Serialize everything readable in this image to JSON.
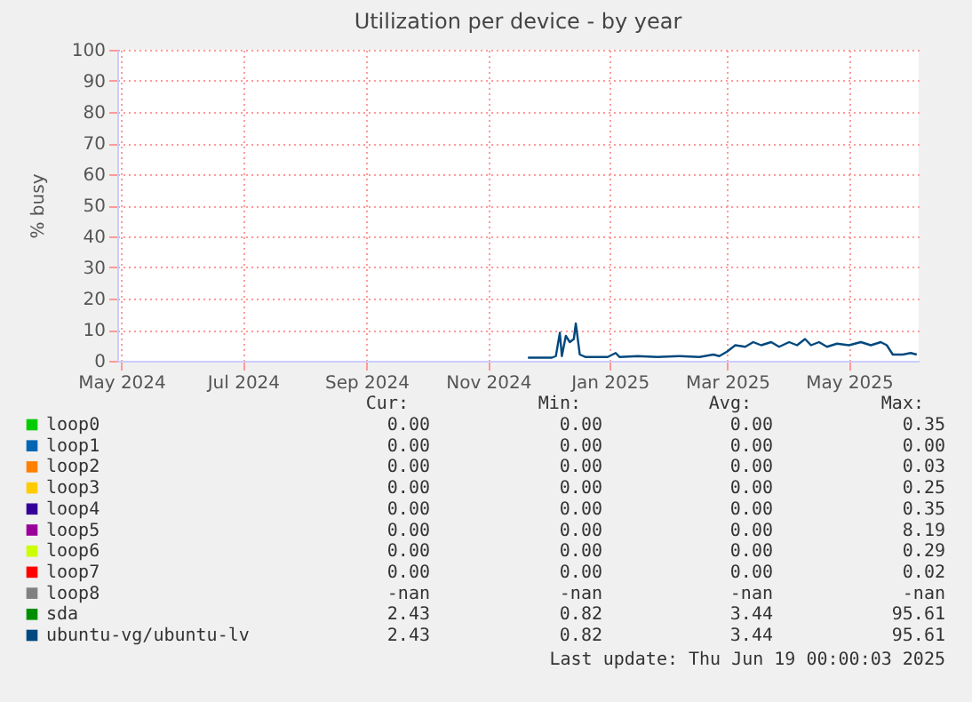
{
  "chart_data": {
    "type": "line",
    "title": "Utilization per device - by year",
    "ylabel": "% busy",
    "x": [
      "2024-11-21",
      "2024-12-03",
      "2024-12-05",
      "2024-12-07",
      "2024-12-08",
      "2024-12-10",
      "2024-12-12",
      "2024-12-14",
      "2024-12-15",
      "2024-12-17",
      "2024-12-20",
      "2024-12-31",
      "2025-01-04",
      "2025-01-06",
      "2025-01-15",
      "2025-01-25",
      "2025-02-05",
      "2025-02-15",
      "2025-02-22",
      "2025-02-25",
      "2025-03-01",
      "2025-03-05",
      "2025-03-10",
      "2025-03-14",
      "2025-03-18",
      "2025-03-23",
      "2025-03-27",
      "2025-04-01",
      "2025-04-05",
      "2025-04-09",
      "2025-04-12",
      "2025-04-16",
      "2025-04-20",
      "2025-04-25",
      "2025-05-01",
      "2025-05-07",
      "2025-05-12",
      "2025-05-17",
      "2025-05-20",
      "2025-05-23",
      "2025-05-28",
      "2025-06-01",
      "2025-06-04"
    ],
    "series": [
      {
        "name": "loop0",
        "color": "#00cc00",
        "values": [
          null,
          null,
          null,
          null,
          null,
          null,
          null,
          null,
          null,
          null,
          null,
          null,
          null,
          null,
          null,
          null,
          null,
          null,
          null,
          null,
          null,
          null,
          null,
          null,
          null,
          null,
          null,
          null,
          null,
          null,
          null,
          null,
          null,
          null,
          null,
          null,
          null,
          null,
          null,
          null,
          null,
          null,
          null
        ]
      },
      {
        "name": "loop1",
        "color": "#0066b3",
        "values": [
          null,
          null,
          null,
          null,
          null,
          null,
          null,
          null,
          null,
          null,
          null,
          null,
          null,
          null,
          null,
          null,
          null,
          null,
          null,
          null,
          null,
          null,
          null,
          null,
          null,
          null,
          null,
          null,
          null,
          null,
          null,
          null,
          null,
          null,
          null,
          null,
          null,
          null,
          null,
          null,
          null,
          null,
          null
        ]
      },
      {
        "name": "loop2",
        "color": "#ff8000",
        "values": [
          null,
          null,
          null,
          null,
          null,
          null,
          null,
          null,
          null,
          null,
          null,
          null,
          null,
          null,
          null,
          null,
          null,
          null,
          null,
          null,
          null,
          null,
          null,
          null,
          null,
          null,
          null,
          null,
          null,
          null,
          null,
          null,
          null,
          null,
          null,
          null,
          null,
          null,
          null,
          null,
          null,
          null,
          null
        ]
      },
      {
        "name": "loop3",
        "color": "#ffcc00",
        "values": [
          null,
          null,
          null,
          null,
          null,
          null,
          null,
          null,
          null,
          null,
          null,
          null,
          null,
          null,
          null,
          null,
          null,
          null,
          null,
          null,
          null,
          null,
          null,
          null,
          null,
          null,
          null,
          null,
          null,
          null,
          null,
          null,
          null,
          null,
          null,
          null,
          null,
          null,
          null,
          null,
          null,
          null,
          null
        ]
      },
      {
        "name": "loop4",
        "color": "#330099",
        "values": [
          null,
          null,
          null,
          null,
          null,
          null,
          null,
          null,
          null,
          null,
          null,
          null,
          null,
          null,
          null,
          null,
          null,
          null,
          null,
          null,
          null,
          null,
          null,
          null,
          null,
          null,
          null,
          null,
          null,
          null,
          null,
          null,
          null,
          null,
          null,
          null,
          null,
          null,
          null,
          null,
          null,
          null,
          null
        ]
      },
      {
        "name": "loop5",
        "color": "#990099",
        "values": [
          null,
          null,
          null,
          null,
          null,
          null,
          null,
          null,
          null,
          null,
          null,
          null,
          null,
          null,
          null,
          null,
          null,
          null,
          null,
          null,
          null,
          null,
          null,
          null,
          null,
          null,
          null,
          null,
          null,
          null,
          null,
          null,
          null,
          null,
          null,
          null,
          null,
          null,
          null,
          null,
          null,
          null,
          null
        ]
      },
      {
        "name": "loop6",
        "color": "#ccff00",
        "values": [
          null,
          null,
          null,
          null,
          null,
          null,
          null,
          null,
          null,
          null,
          null,
          null,
          null,
          null,
          null,
          null,
          null,
          null,
          null,
          null,
          null,
          null,
          null,
          null,
          null,
          null,
          null,
          null,
          null,
          null,
          null,
          null,
          null,
          null,
          null,
          null,
          null,
          null,
          null,
          null,
          null,
          null,
          null
        ]
      },
      {
        "name": "loop7",
        "color": "#ff0000",
        "values": [
          null,
          null,
          null,
          null,
          null,
          null,
          null,
          null,
          null,
          null,
          null,
          null,
          null,
          null,
          null,
          null,
          null,
          null,
          null,
          null,
          null,
          null,
          null,
          null,
          null,
          null,
          null,
          null,
          null,
          null,
          null,
          null,
          null,
          null,
          null,
          null,
          null,
          null,
          null,
          null,
          null,
          null,
          null
        ]
      },
      {
        "name": "loop8",
        "color": "#808080",
        "values": [
          null,
          null,
          null,
          null,
          null,
          null,
          null,
          null,
          null,
          null,
          null,
          null,
          null,
          null,
          null,
          null,
          null,
          null,
          null,
          null,
          null,
          null,
          null,
          null,
          null,
          null,
          null,
          null,
          null,
          null,
          null,
          null,
          null,
          null,
          null,
          null,
          null,
          null,
          null,
          null,
          null,
          null,
          null
        ]
      },
      {
        "name": "sda",
        "color": "#008f00",
        "values": [
          null,
          null,
          null,
          null,
          null,
          null,
          null,
          null,
          null,
          null,
          null,
          null,
          null,
          null,
          null,
          null,
          null,
          null,
          null,
          null,
          null,
          null,
          null,
          null,
          null,
          null,
          null,
          null,
          null,
          null,
          null,
          null,
          null,
          null,
          null,
          null,
          null,
          null,
          null,
          null,
          null,
          null,
          null
        ]
      },
      {
        "name": "ubuntu-vg/ubuntu-lv",
        "color": "#00487d",
        "values": [
          1.0,
          1.0,
          1.5,
          9,
          1.5,
          8,
          6,
          7,
          12,
          2,
          1.2,
          1.2,
          2.5,
          1.2,
          1.5,
          1.2,
          1.5,
          1.2,
          2,
          1.5,
          3,
          5,
          4.5,
          6,
          5,
          6,
          4.5,
          6,
          5,
          7,
          5,
          6,
          4.5,
          5.5,
          5,
          6,
          5,
          6,
          5,
          2,
          2,
          2.5,
          2
        ]
      }
    ],
    "xlim": [
      "2024-04-29",
      "2025-06-05"
    ],
    "xticks": [
      {
        "value": "2024-05-01",
        "label": "May 2024"
      },
      {
        "value": "2024-07-01",
        "label": "Jul 2024"
      },
      {
        "value": "2024-09-01",
        "label": "Sep 2024"
      },
      {
        "value": "2024-11-01",
        "label": "Nov 2024"
      },
      {
        "value": "2025-01-01",
        "label": "Jan 2025"
      },
      {
        "value": "2025-03-01",
        "label": "Mar 2025"
      },
      {
        "value": "2025-05-01",
        "label": "May 2025"
      }
    ],
    "ylim": [
      0,
      100
    ],
    "yticks": [
      0,
      10,
      20,
      30,
      40,
      50,
      60,
      70,
      80,
      90,
      100
    ],
    "grid": true,
    "legend": "bottom left",
    "annotations": [
      "Cur:",
      "Min:",
      "Avg:",
      "Max:",
      "0.00",
      "0.00",
      "0.00",
      "0.35",
      "0.00",
      "0.00",
      "0.00",
      "0.00",
      "0.00",
      "0.00",
      "0.00",
      "0.03",
      "0.00",
      "0.00",
      "0.00",
      "0.25",
      "0.00",
      "0.00",
      "0.00",
      "0.35",
      "0.00",
      "0.00",
      "0.00",
      "8.19",
      "0.00",
      "0.00",
      "0.00",
      "0.29",
      "0.00",
      "0.00",
      "0.00",
      "0.02",
      "-nan",
      "-nan",
      "-nan",
      "-nan",
      "2.43",
      "0.82",
      "3.44",
      "95.61",
      "2.43",
      "0.82",
      "3.44",
      "95.61",
      "Last update: Thu Jun 19 00:00:03 2025"
    ]
  }
}
